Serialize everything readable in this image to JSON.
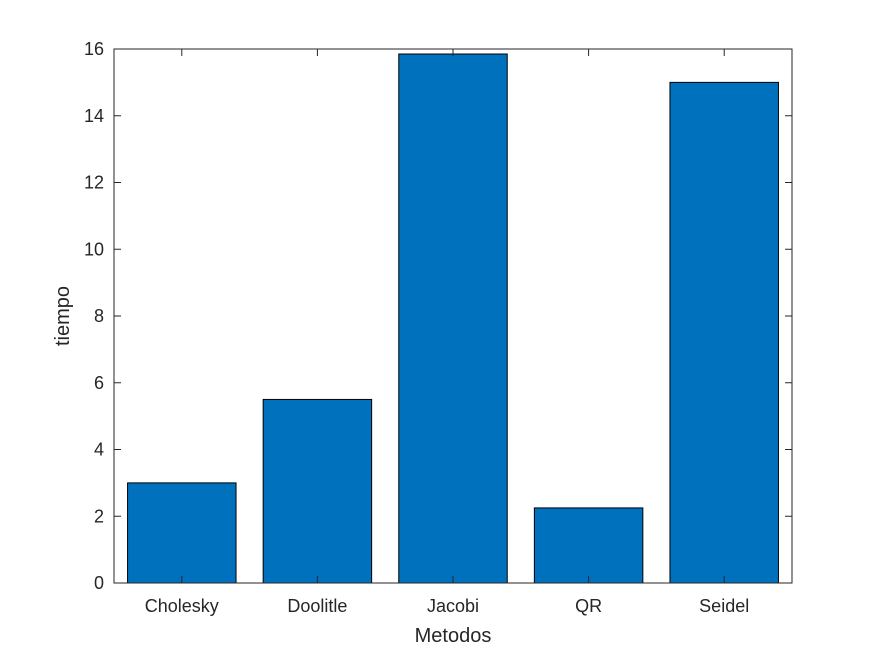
{
  "chart_data": {
    "type": "bar",
    "title": "",
    "xlabel": "Metodos",
    "ylabel": "tiempo",
    "categories": [
      "Cholesky",
      "Doolitle",
      "Jacobi",
      "QR",
      "Seidel"
    ],
    "values": [
      3.0,
      5.5,
      15.85,
      2.25,
      15.0
    ],
    "ylim": [
      0,
      16
    ],
    "yticks": [
      0,
      2,
      4,
      6,
      8,
      10,
      12,
      14,
      16
    ],
    "grid": false,
    "bar_color": "#0072BD",
    "bar_edge_color": "#000000",
    "axis_color": "#262626"
  }
}
